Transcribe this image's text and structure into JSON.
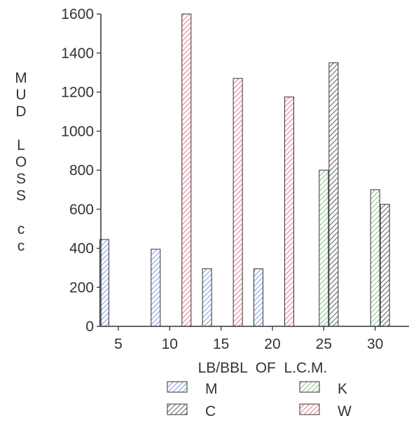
{
  "chart_data": {
    "type": "bar",
    "ylabel": "MUD LOSS cc",
    "ylabel_lines": [
      "M",
      "U",
      "D",
      "",
      "L",
      "O",
      "S",
      "S",
      "",
      "c",
      "c"
    ],
    "xlabel": "LB/BBL  OF  L.C.M.",
    "ylim": [
      0,
      1600
    ],
    "yticks": [
      0,
      200,
      400,
      600,
      800,
      1000,
      1200,
      1400,
      1600
    ],
    "x_ticks": [
      5,
      10,
      15,
      20,
      25,
      30
    ],
    "grid": false,
    "legend_position": "bottom",
    "hatch": "diagonal",
    "series": [
      {
        "name": "M",
        "color": "#5b7fd6",
        "points": [
          [
            5,
            445
          ],
          [
            10,
            395
          ],
          [
            15,
            295
          ],
          [
            20,
            295
          ]
        ]
      },
      {
        "name": "C",
        "color": "#333333",
        "points": [
          [
            25,
            1350
          ],
          [
            30,
            625
          ]
        ]
      },
      {
        "name": "K",
        "color": "#5cb85c",
        "points": [
          [
            25,
            800
          ],
          [
            30,
            700
          ]
        ]
      },
      {
        "name": "W",
        "color": "#e0566a",
        "points": [
          [
            10,
            1600
          ],
          [
            15,
            1270
          ],
          [
            20,
            1175
          ]
        ]
      }
    ]
  }
}
